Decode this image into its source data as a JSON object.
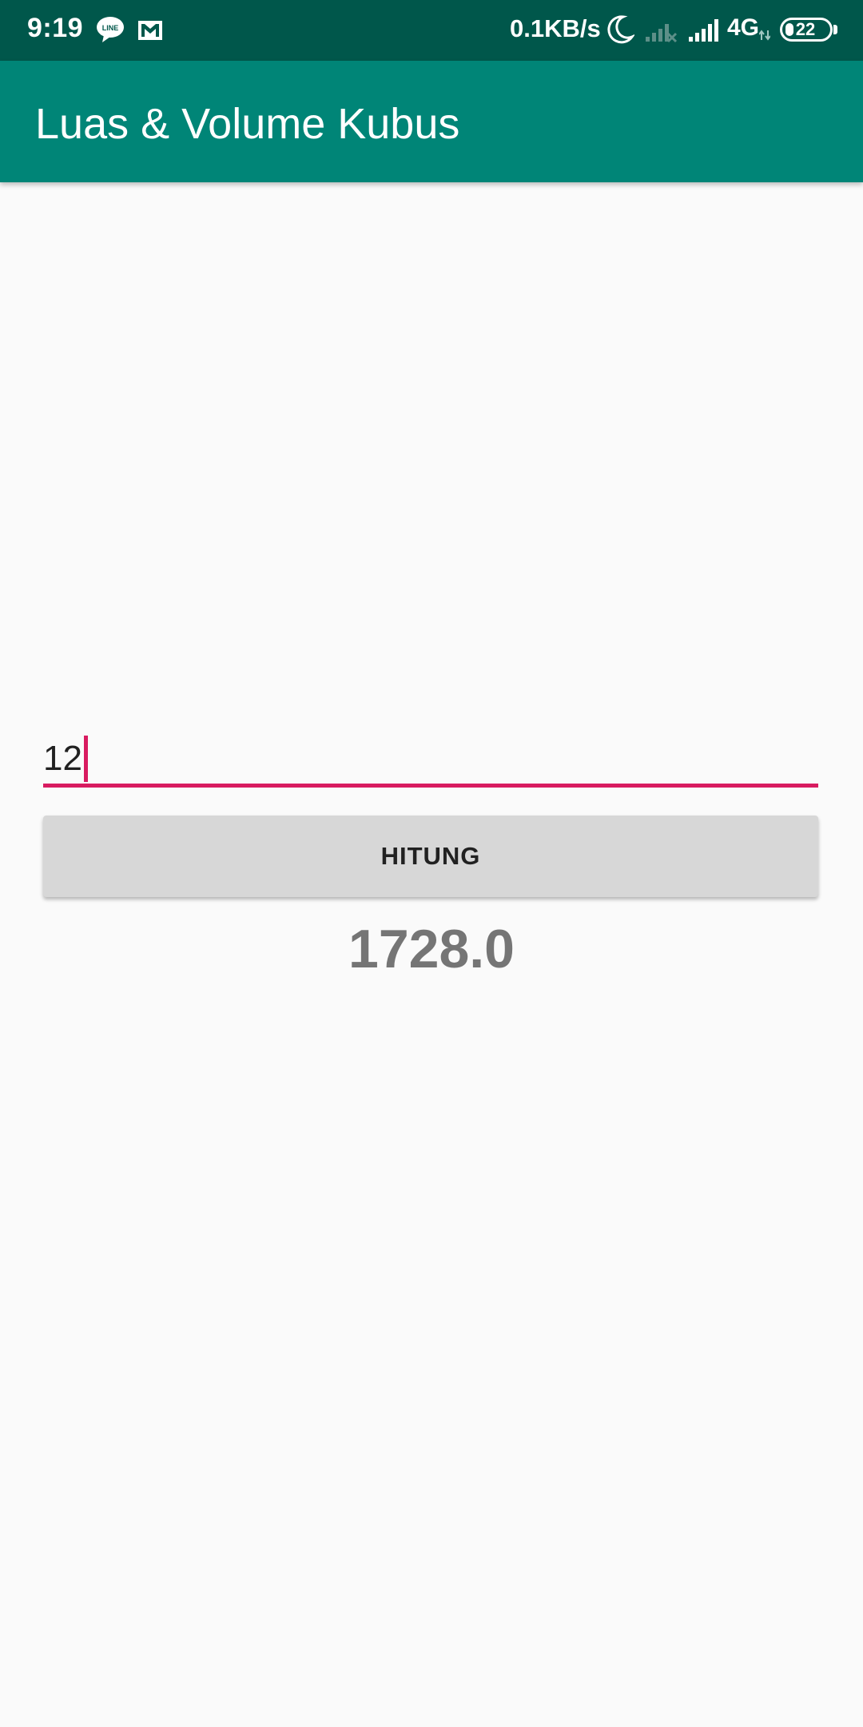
{
  "status_bar": {
    "time": "9:19",
    "net_speed": "0.1KB/s",
    "network_type": "4G",
    "battery_level": "22",
    "icons": [
      "line-icon",
      "mail-icon",
      "moon-icon",
      "signal-off-icon",
      "signal-icon"
    ]
  },
  "app_bar": {
    "title": "Luas & Volume Kubus",
    "color": "#008577"
  },
  "input": {
    "value": "12",
    "accent_color": "#d81b60"
  },
  "button": {
    "label": "HITUNG"
  },
  "result": {
    "value": "1728.0"
  }
}
